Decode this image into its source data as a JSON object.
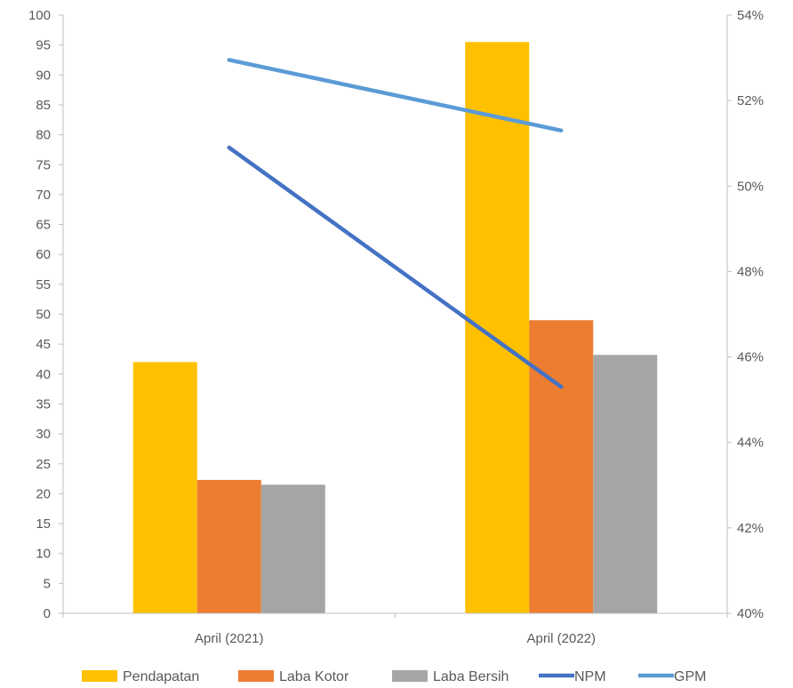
{
  "chart_data": {
    "type": "bar",
    "categories": [
      "April (2021)",
      "April (2022)"
    ],
    "series": [
      {
        "name": "Pendapatan",
        "kind": "bar",
        "axis": "left",
        "color": "#FFC000",
        "values": [
          42,
          95.5
        ]
      },
      {
        "name": "Laba Kotor",
        "kind": "bar",
        "axis": "left",
        "color": "#ED7D31",
        "values": [
          22.3,
          49
        ]
      },
      {
        "name": "Laba Bersih",
        "kind": "bar",
        "axis": "left",
        "color": "#A5A5A5",
        "values": [
          21.5,
          43.2
        ]
      },
      {
        "name": "NPM",
        "kind": "line",
        "axis": "right",
        "color": "#4472C4",
        "values": [
          50.9,
          45.3
        ]
      },
      {
        "name": "GPM",
        "kind": "line",
        "axis": "right",
        "color": "#5B9BD5",
        "values": [
          52.95,
          51.3
        ]
      }
    ],
    "left_axis": {
      "min": 0,
      "max": 100,
      "step": 5,
      "tick_labels": [
        "0",
        "5",
        "10",
        "15",
        "20",
        "25",
        "30",
        "35",
        "40",
        "45",
        "50",
        "55",
        "60",
        "65",
        "70",
        "75",
        "80",
        "85",
        "90",
        "95",
        "100"
      ]
    },
    "right_axis": {
      "min": 40,
      "max": 54,
      "step": 2,
      "tick_labels": [
        "40%",
        "42%",
        "44%",
        "46%",
        "48%",
        "50%",
        "52%",
        "54%"
      ]
    },
    "title": "",
    "xlabel": "",
    "ylabel": "",
    "grid": false,
    "legend_position": "bottom"
  }
}
